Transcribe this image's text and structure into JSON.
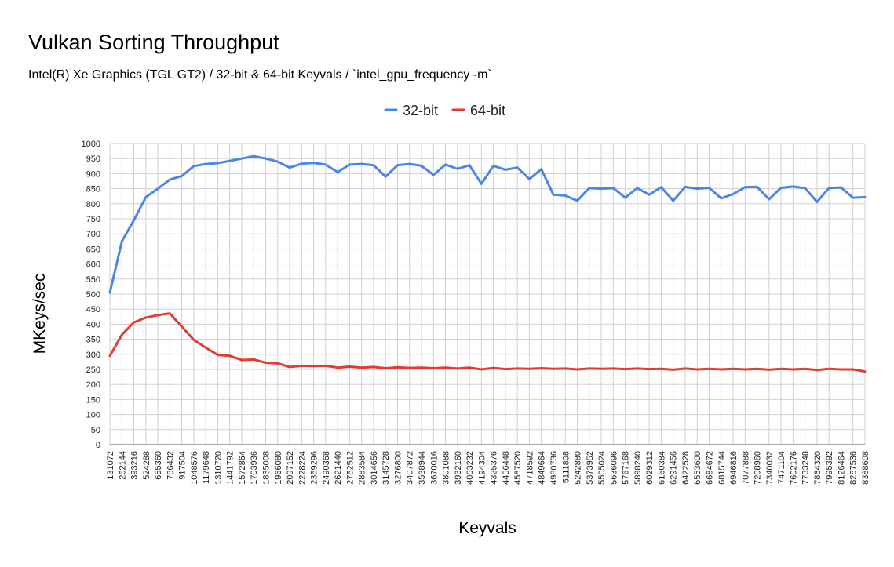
{
  "chart_data": {
    "type": "line",
    "title": "Vulkan Sorting Throughput",
    "subtitle": "Intel(R) Xe Graphics (TGL GT2) / 32-bit & 64-bit Keyvals / `intel_gpu_frequency -m`",
    "xlabel": "Keyvals",
    "ylabel": "MKeys/sec",
    "ylim": [
      0,
      1000
    ],
    "yticks": [
      0,
      50,
      100,
      150,
      200,
      250,
      300,
      350,
      400,
      450,
      500,
      550,
      600,
      650,
      700,
      750,
      800,
      850,
      900,
      950,
      1000
    ],
    "grid": true,
    "legend_position": "top-center",
    "categories": [
      "131072",
      "262144",
      "393216",
      "524288",
      "655360",
      "786432",
      "917504",
      "1048576",
      "1179648",
      "1310720",
      "1441792",
      "1572864",
      "1703936",
      "1835008",
      "1966080",
      "2097152",
      "2228224",
      "2359296",
      "2490368",
      "2621440",
      "2752512",
      "2883584",
      "3014656",
      "3145728",
      "3276800",
      "3407872",
      "3538944",
      "3670016",
      "3801088",
      "3932160",
      "4063232",
      "4194304",
      "4325376",
      "4456448",
      "4587520",
      "4718592",
      "4849664",
      "4980736",
      "5111808",
      "5242880",
      "5373952",
      "5505024",
      "5636096",
      "5767168",
      "5898240",
      "6029312",
      "6160384",
      "6291456",
      "6422528",
      "6553600",
      "6684672",
      "6815744",
      "6946816",
      "7077888",
      "7208960",
      "7340032",
      "7471104",
      "7602176",
      "7733248",
      "7864320",
      "7995392",
      "8126464",
      "8257536",
      "8388608"
    ],
    "series": [
      {
        "name": "32-bit",
        "color": "#4a86e8",
        "values": [
          505,
          675,
          745,
          822,
          850,
          880,
          892,
          925,
          932,
          935,
          942,
          950,
          958,
          950,
          940,
          920,
          933,
          936,
          930,
          905,
          930,
          932,
          928,
          890,
          928,
          932,
          926,
          896,
          930,
          916,
          928,
          866,
          926,
          913,
          920,
          882,
          915,
          830,
          827,
          810,
          852,
          850,
          852,
          820,
          852,
          830,
          855,
          810,
          856,
          850,
          853,
          818,
          832,
          855,
          856,
          815,
          853,
          857,
          852,
          806,
          852,
          854,
          820,
          822
        ]
      },
      {
        "name": "64-bit",
        "color": "#e03c31",
        "values": [
          295,
          365,
          406,
          422,
          430,
          436,
          392,
          348,
          322,
          298,
          295,
          281,
          283,
          272,
          270,
          258,
          262,
          261,
          262,
          256,
          259,
          256,
          258,
          254,
          257,
          255,
          256,
          254,
          256,
          253,
          256,
          250,
          255,
          251,
          253,
          252,
          254,
          252,
          253,
          250,
          253,
          252,
          253,
          251,
          253,
          251,
          252,
          249,
          253,
          250,
          252,
          250,
          252,
          250,
          252,
          249,
          252,
          250,
          252,
          248,
          252,
          250,
          250,
          243
        ]
      }
    ]
  }
}
